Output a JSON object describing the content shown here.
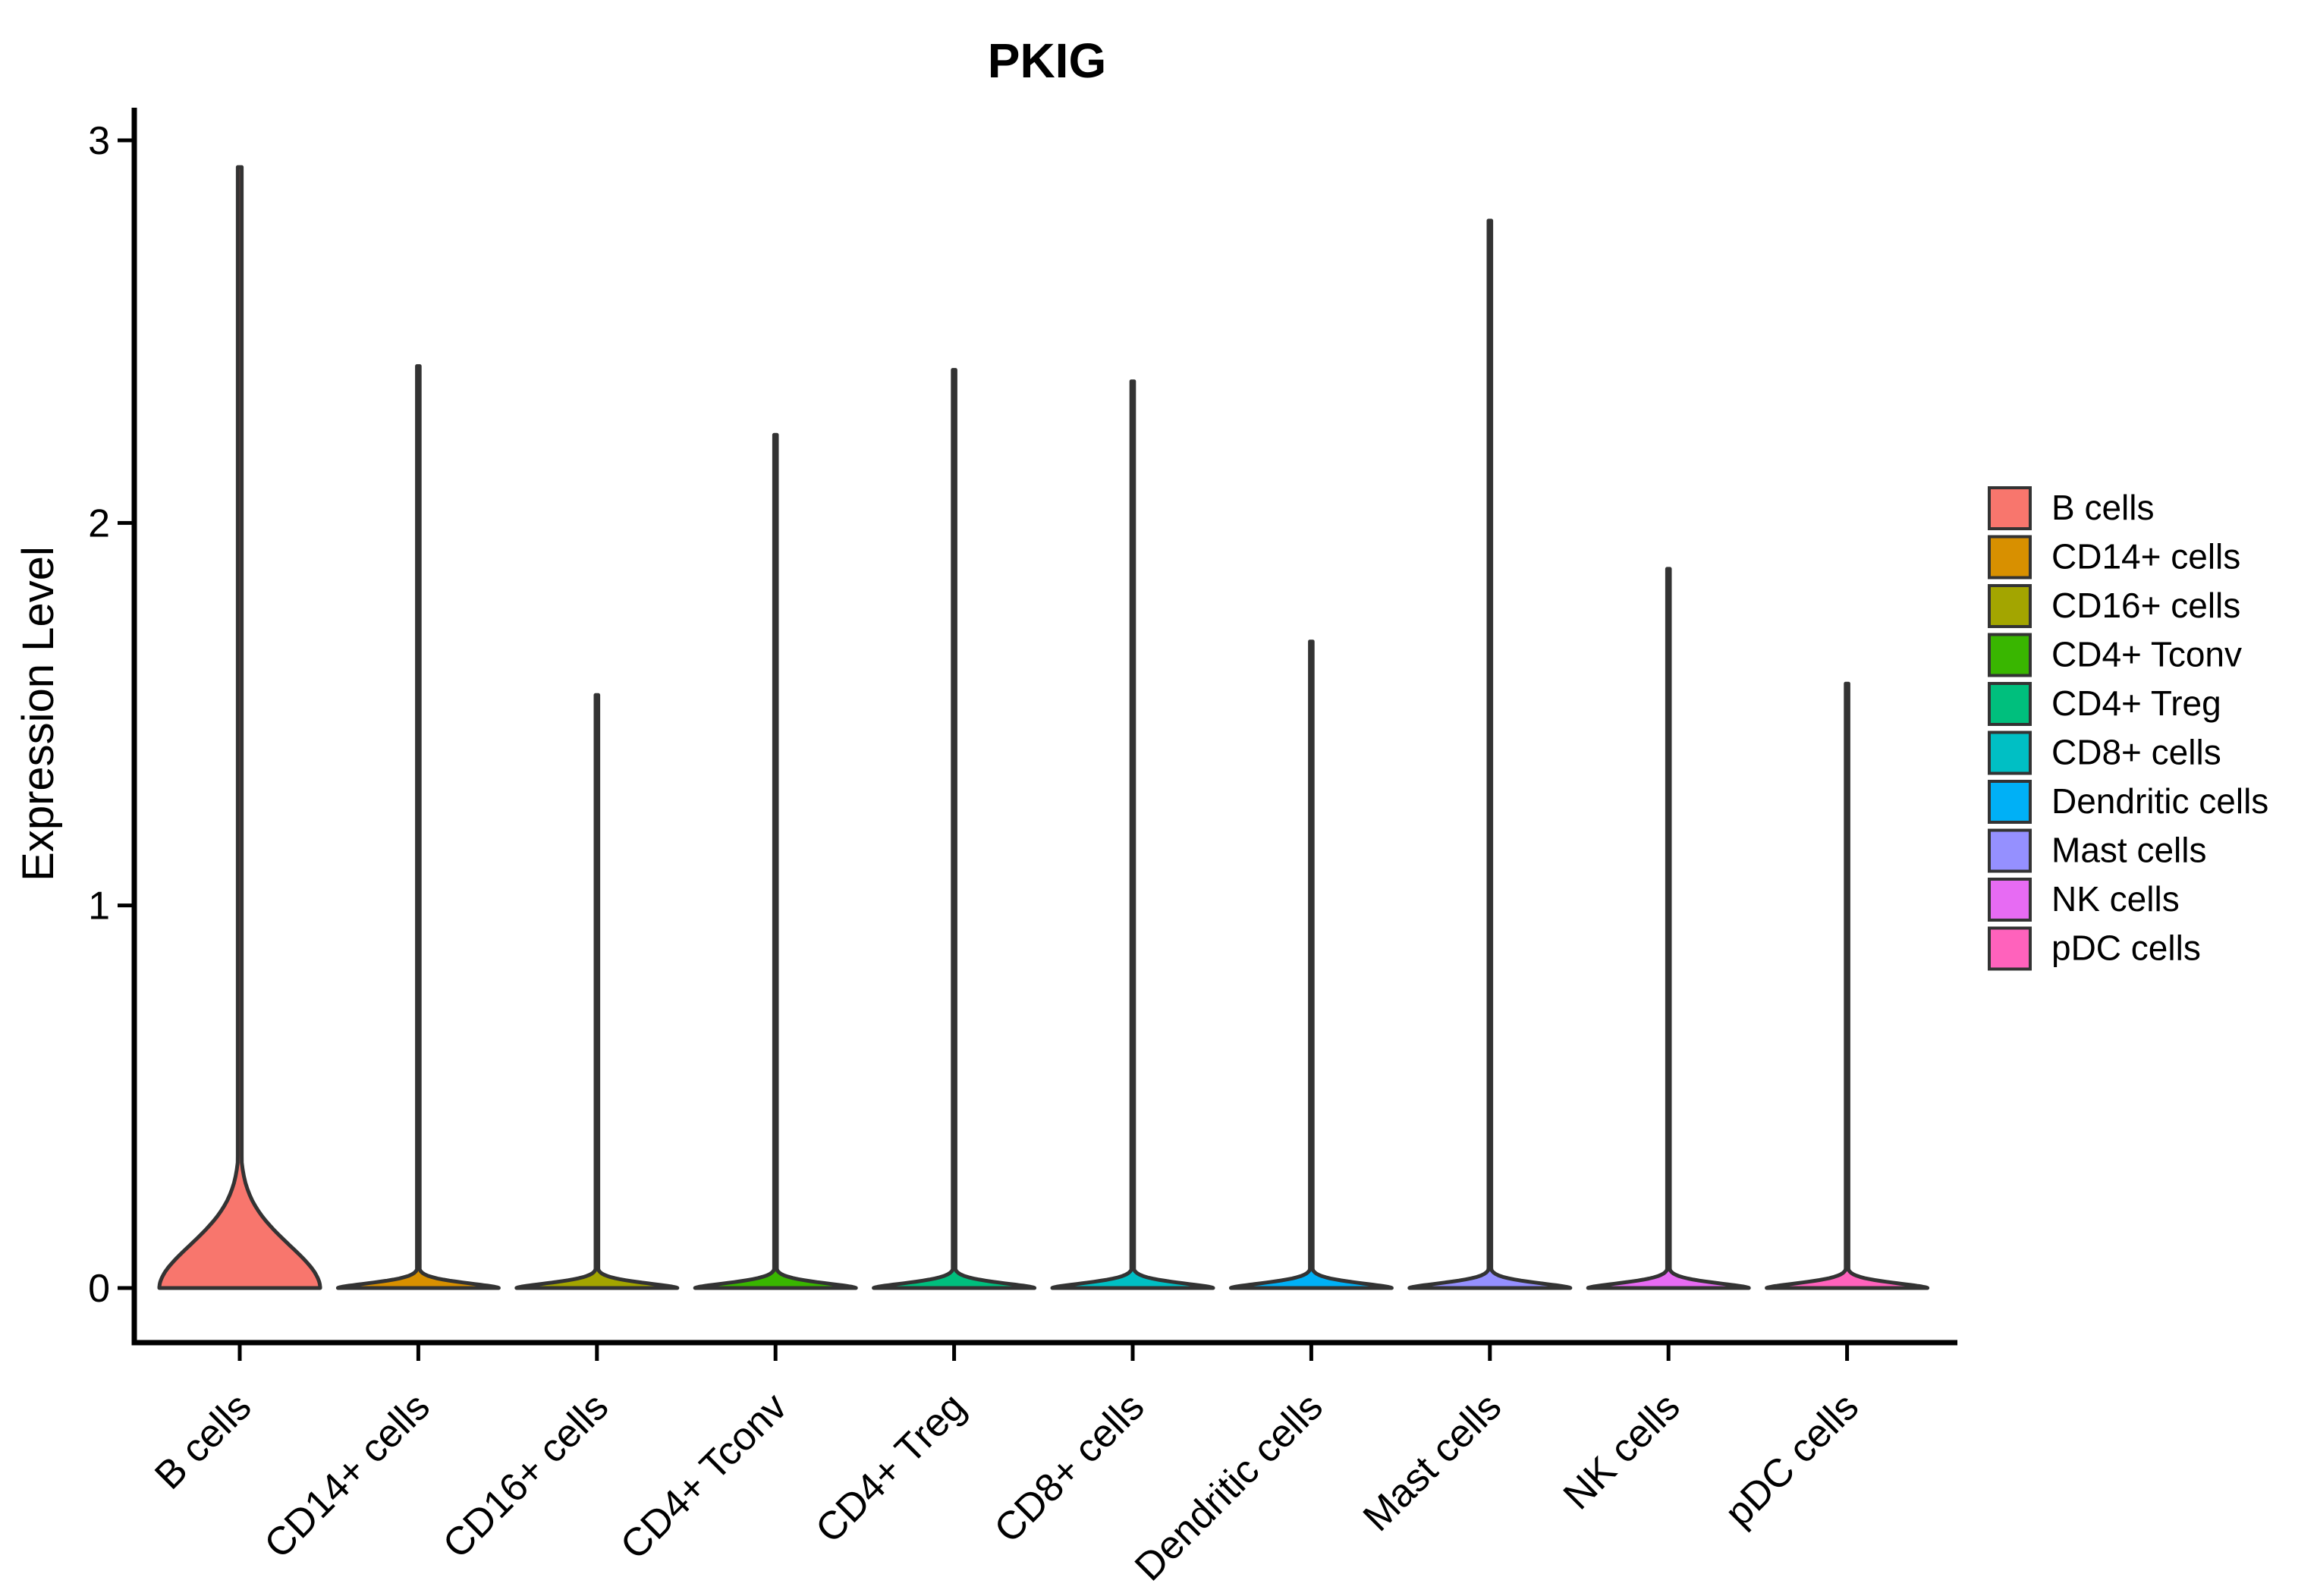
{
  "title": "PKIG",
  "axes": {
    "ylabel": "Expression Level",
    "ytick_labels": [
      "0",
      "1",
      "2",
      "3"
    ]
  },
  "chart_data": {
    "type": "violin",
    "title": "PKIG",
    "xlabel": "",
    "ylabel": "Expression Level",
    "ylim": [
      0,
      3
    ],
    "yticks": [
      0,
      1,
      2,
      3
    ],
    "grid": false,
    "legend_position": "right",
    "categories": [
      "B cells",
      "CD14+ cells",
      "CD16+ cells",
      "CD4+ Tconv",
      "CD4+ Treg",
      "CD8+ cells",
      "Dendritic cells",
      "Mast cells",
      "NK cells",
      "pDC cells"
    ],
    "series": [
      {
        "name": "B cells",
        "color": "#F8766D",
        "max_expression": 2.93,
        "zero_bulk_spread": 0.165,
        "zero_bulk_power": 1.9,
        "spike_halfwidth": 2.6
      },
      {
        "name": "CD14+ cells",
        "color": "#D89000",
        "max_expression": 2.41,
        "zero_bulk_spread": 0.02,
        "zero_bulk_power": 1.6,
        "spike_halfwidth": 1.8
      },
      {
        "name": "CD16+ cells",
        "color": "#A3A500",
        "max_expression": 1.55,
        "zero_bulk_spread": 0.02,
        "zero_bulk_power": 1.6,
        "spike_halfwidth": 1.8
      },
      {
        "name": "CD4+ Tconv",
        "color": "#39B600",
        "max_expression": 2.23,
        "zero_bulk_spread": 0.02,
        "zero_bulk_power": 1.6,
        "spike_halfwidth": 1.8
      },
      {
        "name": "CD4+ Treg",
        "color": "#00BF7D",
        "max_expression": 2.4,
        "zero_bulk_spread": 0.02,
        "zero_bulk_power": 1.6,
        "spike_halfwidth": 1.8
      },
      {
        "name": "CD8+ cells",
        "color": "#00BFC4",
        "max_expression": 2.37,
        "zero_bulk_spread": 0.02,
        "zero_bulk_power": 1.6,
        "spike_halfwidth": 1.8
      },
      {
        "name": "Dendritic cells",
        "color": "#00B0F6",
        "max_expression": 1.69,
        "zero_bulk_spread": 0.02,
        "zero_bulk_power": 1.6,
        "spike_halfwidth": 1.8
      },
      {
        "name": "Mast cells",
        "color": "#9590FF",
        "max_expression": 2.79,
        "zero_bulk_spread": 0.02,
        "zero_bulk_power": 1.6,
        "spike_halfwidth": 1.8
      },
      {
        "name": "NK cells",
        "color": "#E76BF3",
        "max_expression": 1.88,
        "zero_bulk_spread": 0.02,
        "zero_bulk_power": 1.6,
        "spike_halfwidth": 1.8
      },
      {
        "name": "pDC cells",
        "color": "#FF62BC",
        "max_expression": 1.58,
        "zero_bulk_spread": 0.02,
        "zero_bulk_power": 1.6,
        "spike_halfwidth": 1.8
      }
    ],
    "violin_outline_color": "#333333",
    "axis_color": "#000000"
  },
  "legend": {
    "items": [
      {
        "label": "B cells",
        "color": "#F8766D"
      },
      {
        "label": "CD14+ cells",
        "color": "#D89000"
      },
      {
        "label": "CD16+ cells",
        "color": "#A3A500"
      },
      {
        "label": "CD4+ Tconv",
        "color": "#39B600"
      },
      {
        "label": "CD4+ Treg",
        "color": "#00BF7D"
      },
      {
        "label": "CD8+ cells",
        "color": "#00BFC4"
      },
      {
        "label": "Dendritic cells",
        "color": "#00B0F6"
      },
      {
        "label": "Mast cells",
        "color": "#9590FF"
      },
      {
        "label": "NK cells",
        "color": "#E76BF3"
      },
      {
        "label": "pDC cells",
        "color": "#FF62BC"
      }
    ]
  }
}
